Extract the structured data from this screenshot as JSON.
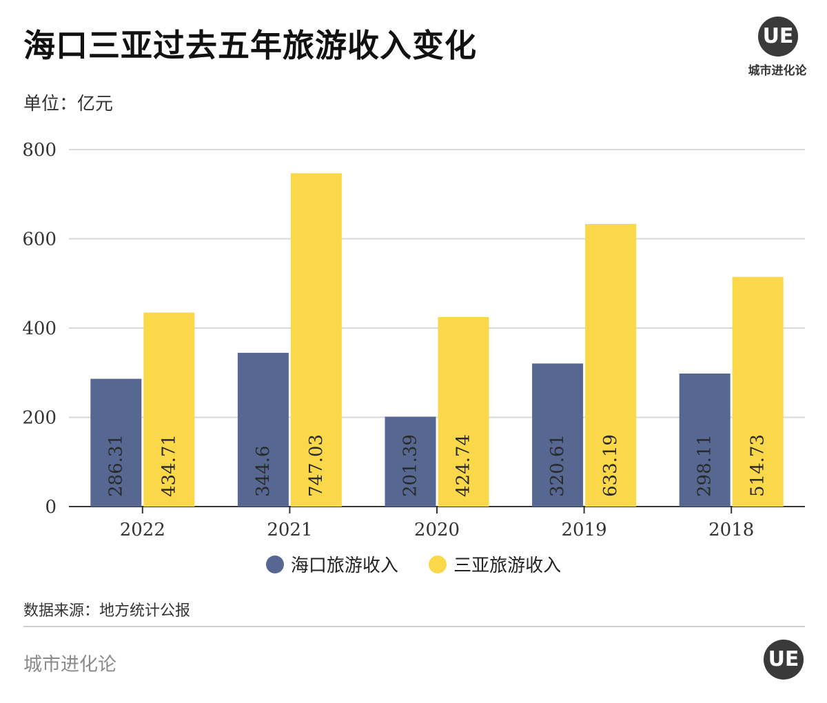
{
  "title": "海口三亚过去五年旅游收入变化",
  "unit_label": "单位：亿元",
  "logo": {
    "mark": "UE",
    "name": "城市进化论"
  },
  "source_text": "数据来源：地方统计公报",
  "footer": {
    "brand": "城市进化论",
    "mark": "UE"
  },
  "colors": {
    "haikou": "#566891",
    "sanya": "#fbd84a"
  },
  "chart_data": {
    "type": "bar",
    "categories": [
      "2022",
      "2021",
      "2020",
      "2019",
      "2018"
    ],
    "series": [
      {
        "name": "海口旅游收入",
        "values": [
          286.31,
          344.6,
          201.39,
          320.61,
          298.11
        ],
        "labels": [
          "286.31",
          "344.6",
          "201.39",
          "320.61",
          "298.11"
        ]
      },
      {
        "name": "三亚旅游收入",
        "values": [
          434.71,
          747.03,
          424.74,
          633.19,
          514.73
        ],
        "labels": [
          "434.71",
          "747.03",
          "424.74",
          "633.19",
          "514.73"
        ]
      }
    ],
    "ylim": [
      0,
      800
    ],
    "yticks": [
      0,
      200,
      400,
      600,
      800
    ],
    "ytick_labels": [
      "0",
      "200",
      "400",
      "600",
      "800"
    ],
    "grid": true,
    "legend_position": "bottom"
  }
}
